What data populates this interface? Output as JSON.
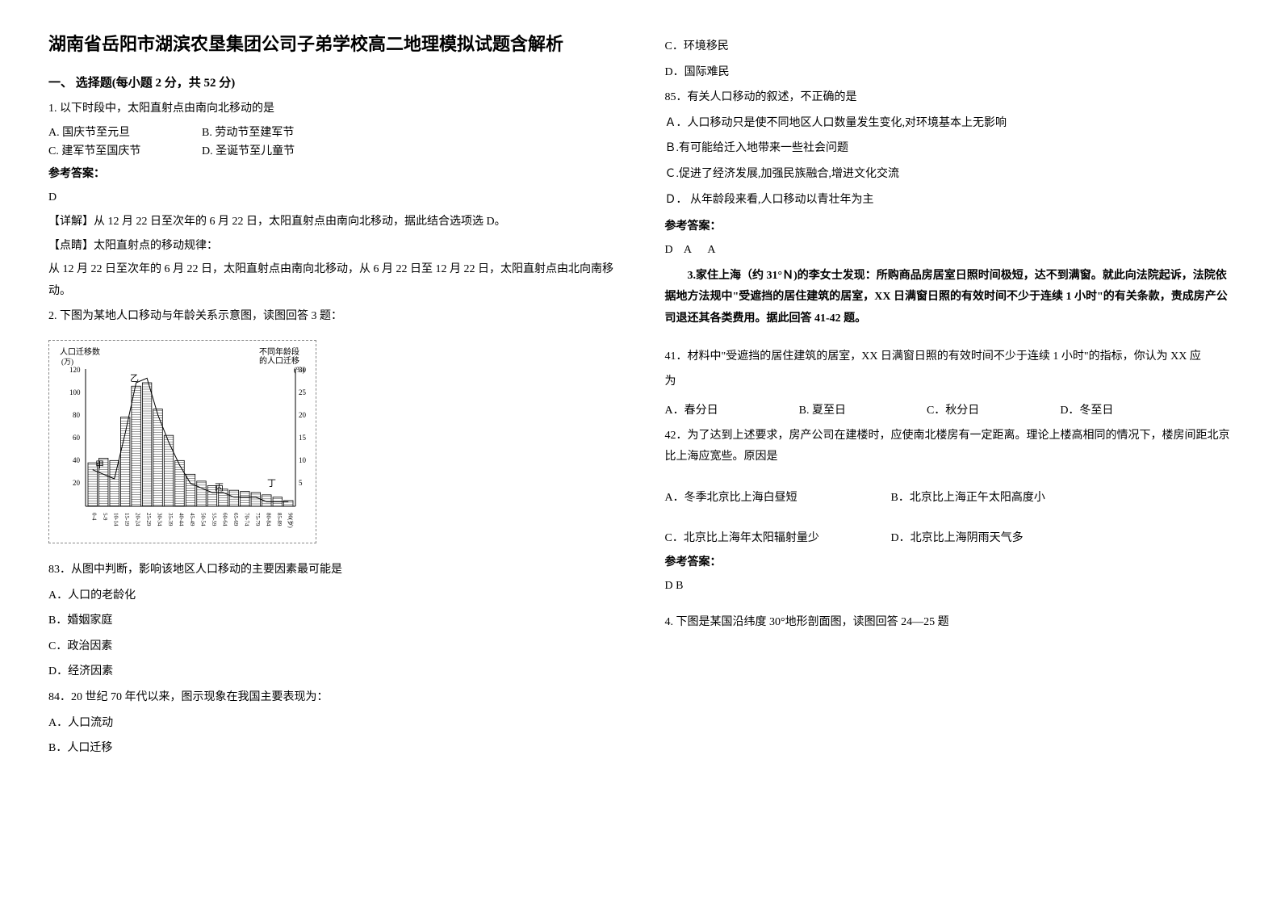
{
  "title": "湖南省岳阳市湖滨农垦集团公司子弟学校高二地理模拟试题含解析",
  "section1_header": "一、 选择题(每小题 2 分，共 52 分)",
  "q1": {
    "text": "1. 以下时段中，太阳直射点由南向北移动的是",
    "optA": "A.  国庆节至元旦",
    "optB": "B.  劳动节至建军节",
    "optC": "C.  建军节至国庆节",
    "optD": "D.  圣诞节至儿童节",
    "answer_header": "参考答案：",
    "answer": "D",
    "detail": "【详解】从 12 月 22 日至次年的 6 月 22 日，太阳直射点由南向北移动，据此结合选项选 D。",
    "tip_header": "【点睛】太阳直射点的移动规律：",
    "tip_text": "从 12 月 22 日至次年的 6 月 22 日，太阳直射点由南向北移动，从 6 月 22 日至 12 月 22 日，太阳直射点由北向南移动。"
  },
  "q2": {
    "text": "2. 下图为某地人口移动与年龄关系示意图，读图回答 3 题：",
    "chart": {
      "left_ylabel": "人口迁移数",
      "left_yunit": "(万)",
      "right_ylabel": "不同年龄段的人口迁移(%)",
      "left_ymax": 120,
      "left_yticks": [
        0,
        20,
        40,
        60,
        80,
        100,
        120
      ],
      "right_ymax": 30,
      "right_yticks": [
        0,
        5,
        10,
        15,
        20,
        25,
        30
      ],
      "categories": [
        "0-4",
        "5-9",
        "10-14",
        "15-19",
        "20-24",
        "25-29",
        "30-34",
        "35-39",
        "40-44",
        "45-49",
        "50-54",
        "55-59",
        "60-64",
        "65-69",
        "70-74",
        "75-79",
        "80-84",
        "85-89",
        "90(岁)"
      ],
      "bar_values": [
        38,
        42,
        40,
        78,
        105,
        108,
        85,
        62,
        40,
        28,
        22,
        18,
        15,
        14,
        13,
        12,
        10,
        8,
        5
      ],
      "line_values": [
        8,
        7,
        6,
        16,
        27,
        28,
        20,
        14,
        9,
        5,
        4,
        3,
        3,
        2,
        2,
        2,
        1,
        1,
        1
      ],
      "labels": {
        "jia": "甲",
        "yi": "乙",
        "bing": "丙",
        "ding": "丁"
      },
      "bar_color": "#000000",
      "line_color": "#000000",
      "bg_color": "#ffffff",
      "grid_color": "#cccccc"
    },
    "q83": "83．从图中判断，影响该地区人口移动的主要因素最可能是",
    "q83_optA": "A．人口的老龄化",
    "q83_optB": "B．婚姻家庭",
    "q83_optC": "C．政治因素",
    "q83_optD": "D．经济因素",
    "q84": "84．20 世纪 70 年代以来，图示现象在我国主要表现为：",
    "q84_optA": "A．人口流动",
    "q84_optB": "B．人口迁移",
    "q84_optC": "C．环境移民",
    "q84_optD": "D．国际难民",
    "q85": "85．有关人口移动的叙述，不正确的是",
    "q85_optA": "Ａ．人口移动只是使不同地区人口数量发生变化,对环境基本上无影响",
    "q85_optB": "Ｂ.有可能给迁入地带来一些社会问题",
    "q85_optC": "Ｃ.促进了经济发展,加强民族融合,增进文化交流",
    "q85_optD": "Ｄ． 从年龄段来看,人口移动以青壮年为主",
    "answer_header": "参考答案：",
    "answer": "D    A      A"
  },
  "q3": {
    "intro": "3.家住上海（约 31°Ｎ)的李女士发现：所购商品房居室日照时间极短，达不到满窗。就此向法院起诉，法院依据地方法规中\"受遮挡的居住建筑的居室，XX 日满窗日照的有效时间不少于连续 1 小时\"的有关条款，责成房产公司退还其各类费用。据此回答 41-42 题。",
    "q41": "41．材料中\"受遮挡的居住建筑的居室，XX 日满窗日照的有效时间不少于连续 1 小时\"的指标，你认为 XX 应",
    "q41_line2": "为",
    "q41_optA": "A．春分日",
    "q41_optB": "B. 夏至日",
    "q41_optC": "C．秋分日",
    "q41_optD": "D．冬至日",
    "q42": "42．为了达到上述要求，房产公司在建楼时，应使南北楼房有一定距离。理论上楼高相同的情况下，楼房间距北京比上海应宽些。原因是",
    "q42_optA": "A．冬季北京比上海白昼短",
    "q42_optB": "B．北京比上海正午太阳高度小",
    "q42_optC": "C．北京比上海年太阳辐射量少",
    "q42_optD": "D．北京比上海阴雨天气多",
    "answer_header": "参考答案：",
    "answer": "D  B"
  },
  "q4": {
    "text": "4. 下图是某国沿纬度 30°地形剖面图，读图回答 24—25 题"
  }
}
